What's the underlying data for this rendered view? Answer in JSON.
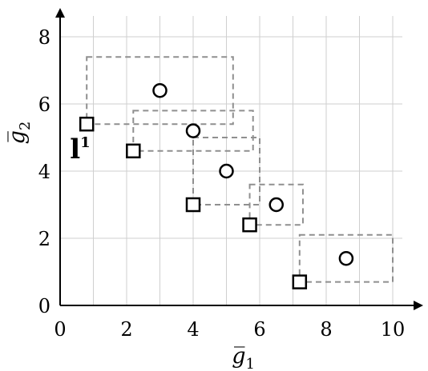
{
  "chart_data": {
    "type": "scatter",
    "title": "",
    "xlabel": "g̅",
    "xlabel_sub": "1",
    "ylabel": "g̅",
    "ylabel_sub": "2",
    "xlim": [
      0,
      11
    ],
    "ylim": [
      0,
      9
    ],
    "xticks": [
      0,
      2,
      4,
      6,
      8,
      10
    ],
    "yticks": [
      0,
      2,
      4,
      6,
      8
    ],
    "x_tick_labels": [
      "0",
      "2",
      "4",
      "6",
      "8",
      "10"
    ],
    "y_tick_labels": [
      "0",
      "2",
      "4",
      "6",
      "8"
    ],
    "grid": true,
    "series": [
      {
        "marker": "square",
        "points": [
          {
            "x": 0.8,
            "y": 5.4
          },
          {
            "x": 2.2,
            "y": 4.6
          },
          {
            "x": 4.0,
            "y": 3.0
          },
          {
            "x": 5.7,
            "y": 2.4
          },
          {
            "x": 7.2,
            "y": 0.7
          }
        ]
      },
      {
        "marker": "circle",
        "points": [
          {
            "x": 3.0,
            "y": 6.4
          },
          {
            "x": 4.0,
            "y": 5.2
          },
          {
            "x": 5.0,
            "y": 4.0
          },
          {
            "x": 6.5,
            "y": 3.0
          },
          {
            "x": 8.6,
            "y": 1.4
          }
        ]
      }
    ],
    "dashed_boxes": [
      {
        "x0": 0.8,
        "y0": 5.4,
        "x1": 5.2,
        "y1": 7.4
      },
      {
        "x0": 2.2,
        "y0": 4.6,
        "x1": 5.8,
        "y1": 5.8
      },
      {
        "x0": 4.0,
        "y0": 3.0,
        "x1": 6.0,
        "y1": 5.0
      },
      {
        "x0": 5.7,
        "y0": 2.4,
        "x1": 7.3,
        "y1": 3.6
      },
      {
        "x0": 7.2,
        "y0": 0.7,
        "x1": 10.0,
        "y1": 2.1
      }
    ],
    "annotation": {
      "text": "l",
      "sup": "1"
    }
  }
}
